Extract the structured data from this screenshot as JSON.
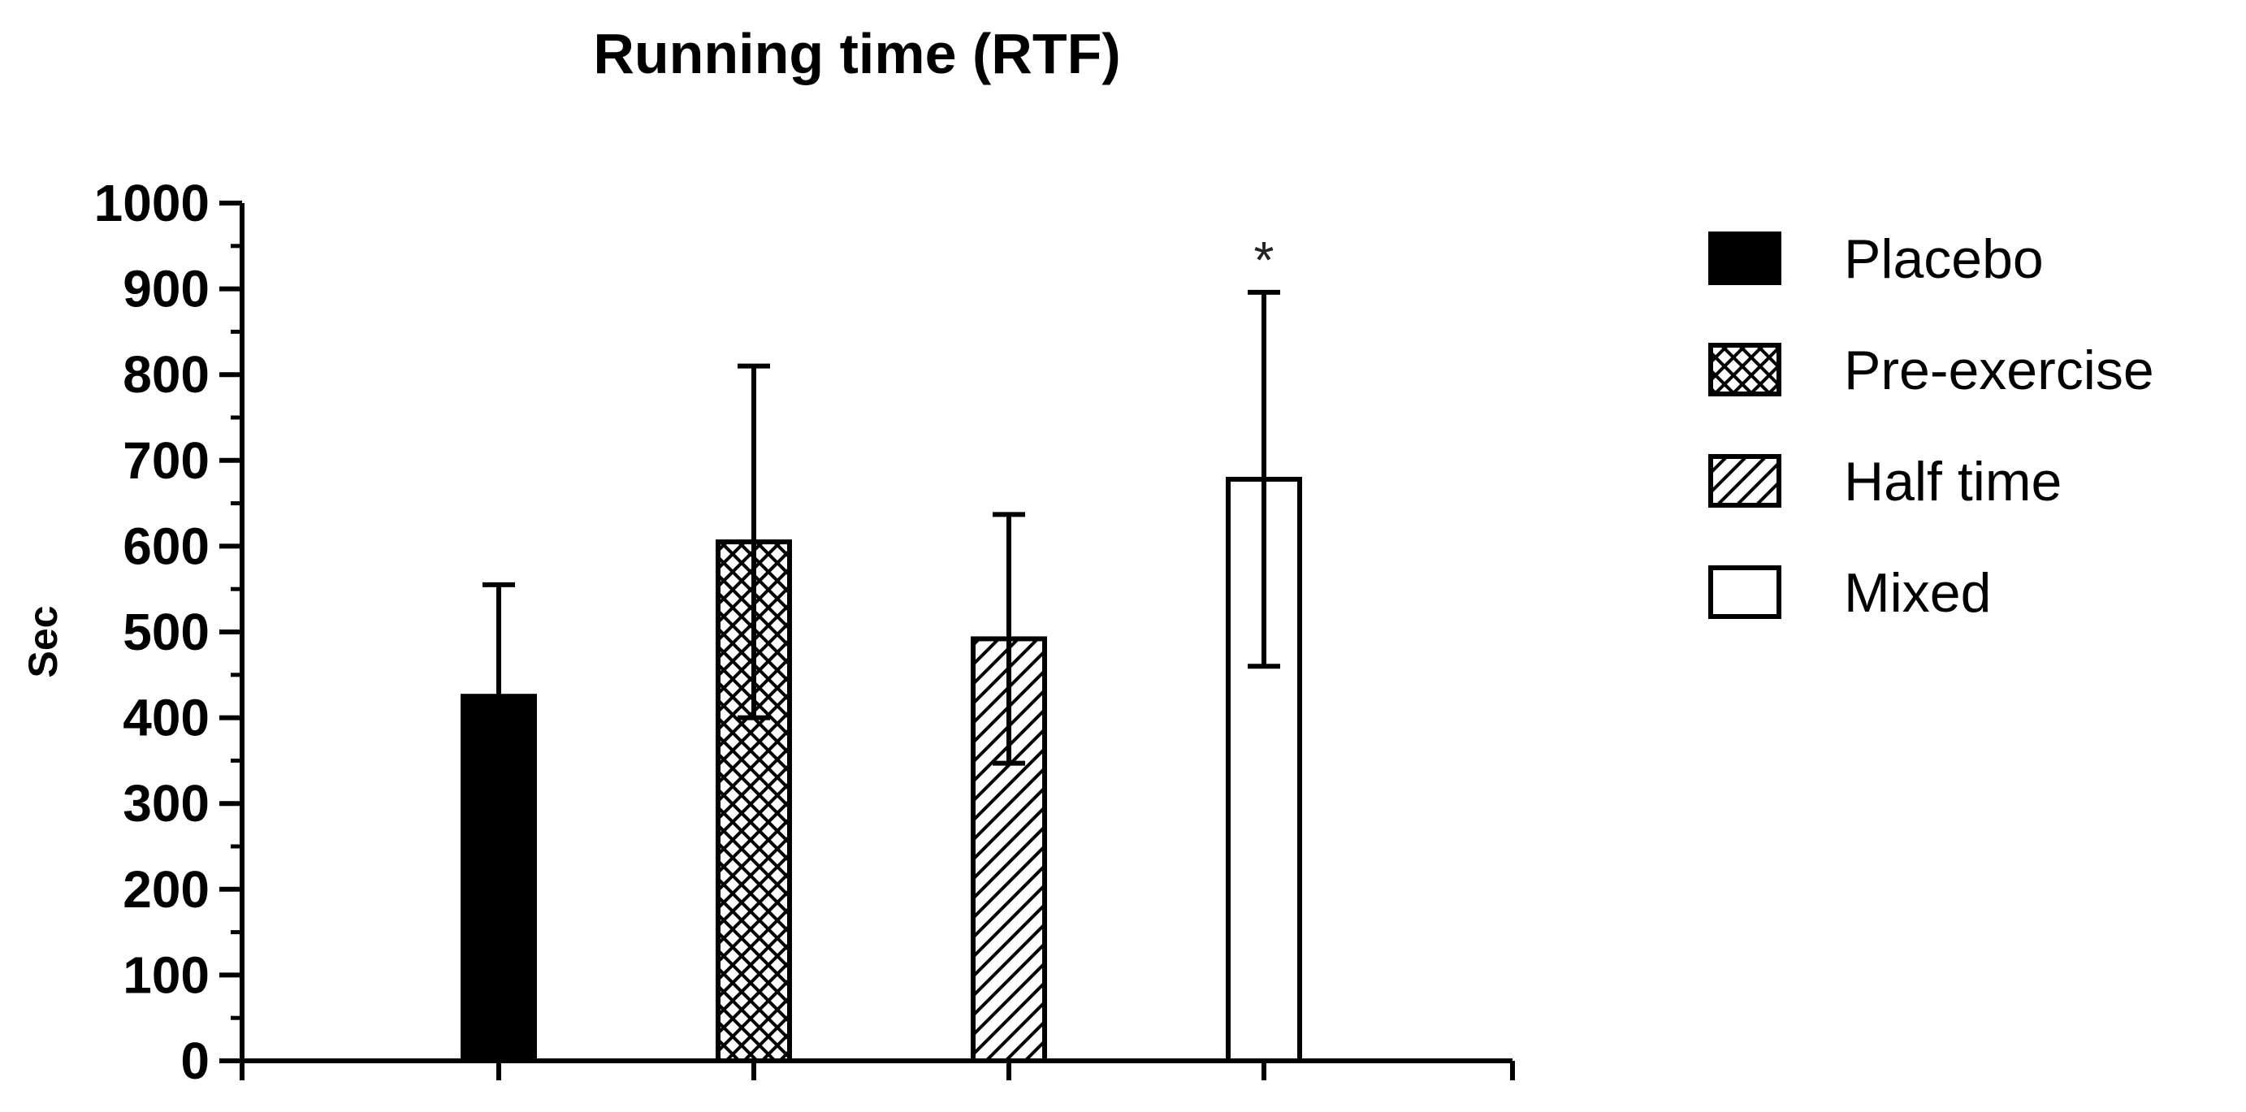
{
  "chart_data": {
    "type": "bar",
    "title": "Running time (RTF)",
    "xlabel": "",
    "ylabel": "Sec",
    "ylim": [
      0,
      1000
    ],
    "yticks": [
      "0",
      "100",
      "200",
      "300",
      "400",
      "500",
      "600",
      "700",
      "800",
      "900",
      "1000"
    ],
    "series": [
      {
        "name": "Placebo",
        "value": 425,
        "error": 130,
        "pattern": "solid",
        "color": "#000000"
      },
      {
        "name": "Pre-exercise",
        "value": 605,
        "error": 205,
        "pattern": "crosshatch",
        "color": "#000000"
      },
      {
        "name": "Half time",
        "value": 492,
        "error": 145,
        "pattern": "diagonal",
        "color": "#000000"
      },
      {
        "name": "Mixed",
        "value": 678,
        "error": 218,
        "pattern": "empty",
        "color": "#000000"
      }
    ],
    "annotations": [
      {
        "series": "Mixed",
        "text": "*"
      }
    ],
    "legend": {
      "position": "right"
    },
    "grid": false
  }
}
